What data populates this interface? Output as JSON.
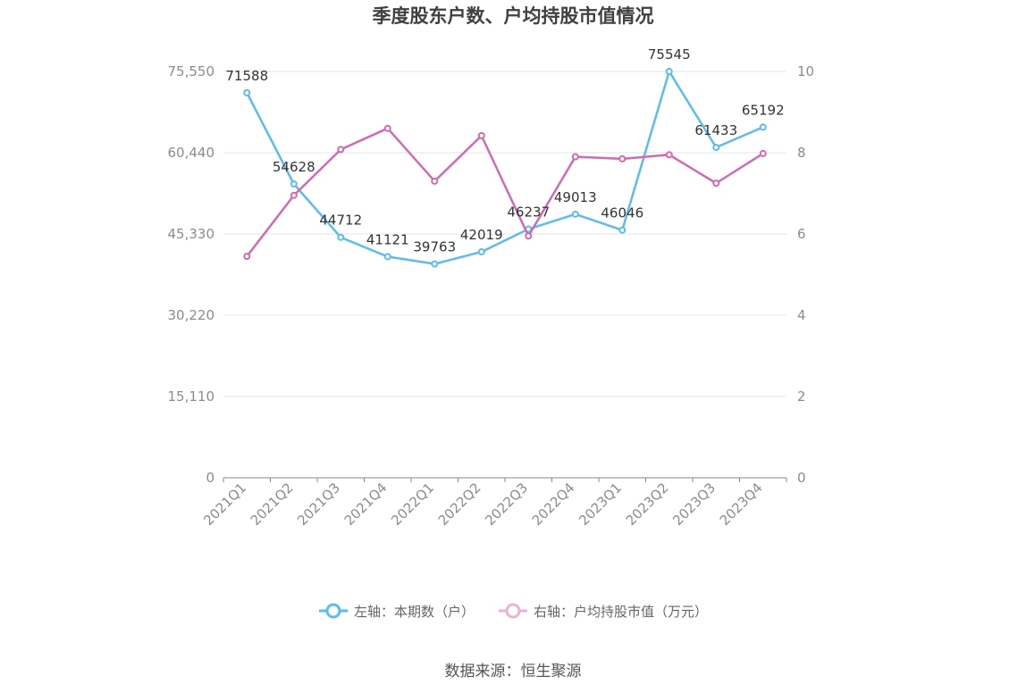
{
  "chart_data": {
    "type": "line",
    "title": "季度股东户数、户均持股市值情况",
    "categories": [
      "2021Q1",
      "2021Q2",
      "2021Q3",
      "2021Q4",
      "2022Q1",
      "2022Q2",
      "2022Q3",
      "2022Q4",
      "2023Q1",
      "2023Q2",
      "2023Q3",
      "2023Q4"
    ],
    "left_axis": {
      "ylim": [
        0,
        75550
      ],
      "ticks": [
        "0",
        "15,110",
        "30,220",
        "45,330",
        "60,440",
        "75,550"
      ]
    },
    "right_axis": {
      "ylim": [
        0,
        10
      ],
      "ticks": [
        "0",
        "2",
        "4",
        "6",
        "8",
        "10"
      ]
    },
    "series": [
      {
        "name": "左轴：本期数（户）",
        "axis": "left",
        "color": "#5bbcf0",
        "values": [
          71588,
          54628,
          44712,
          41121,
          39763,
          42019,
          46237,
          49013,
          46046,
          75545,
          61433,
          65192
        ],
        "labels": [
          "71588",
          "54628",
          "44712",
          "41121",
          "39763",
          "42019",
          "46237",
          "49013",
          "46046",
          "75545",
          "61433",
          "65192"
        ]
      },
      {
        "name": "右轴：户均持股市值（万元）",
        "axis": "right",
        "color": "#d36ab0",
        "values": [
          5.45,
          6.95,
          8.08,
          8.6,
          7.3,
          8.42,
          5.95,
          7.9,
          7.85,
          7.95,
          7.25,
          7.98
        ]
      }
    ],
    "grid": true,
    "legend_position": "bottom"
  },
  "source": "数据来源：恒生聚源"
}
